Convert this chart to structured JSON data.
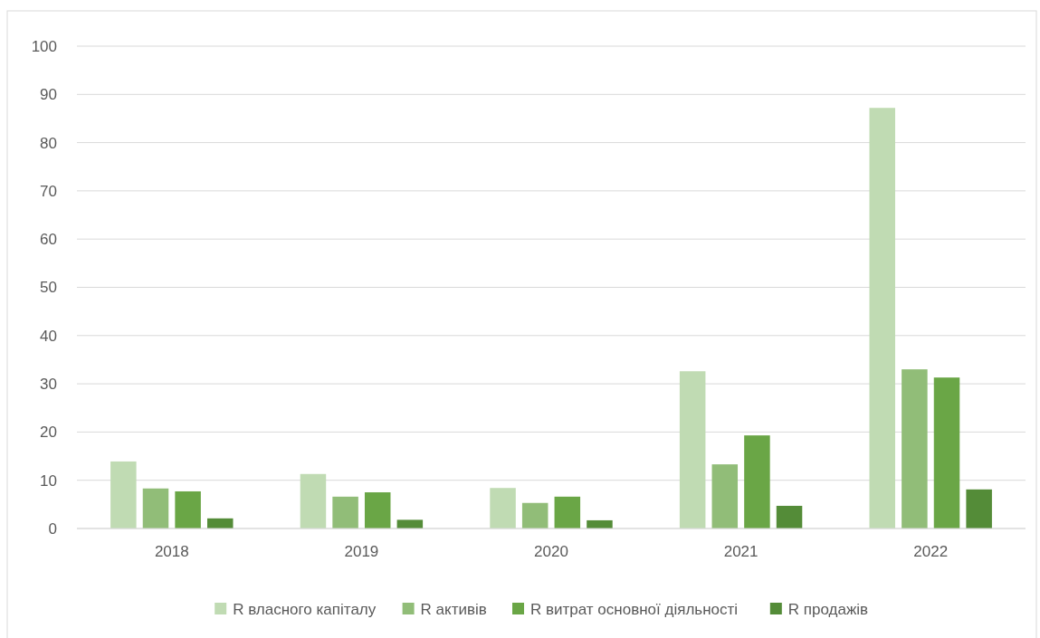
{
  "chart_data": {
    "type": "bar",
    "categories": [
      "2018",
      "2019",
      "2020",
      "2021",
      "2022"
    ],
    "series": [
      {
        "name": "R власного капіталу",
        "color": "#c0dbb3",
        "values": [
          13.9,
          11.3,
          8.4,
          32.6,
          87.2
        ]
      },
      {
        "name": "R активів",
        "color": "#91bd78",
        "values": [
          8.3,
          6.6,
          5.3,
          13.3,
          33.0
        ]
      },
      {
        "name": "R витрат основної діяльності",
        "color": "#6aa646",
        "values": [
          7.7,
          7.5,
          6.6,
          19.3,
          31.3
        ]
      },
      {
        "name": "R продажів",
        "color": "#548c38",
        "values": [
          2.1,
          1.8,
          1.7,
          4.7,
          8.1
        ]
      }
    ],
    "ylim": [
      0,
      100
    ],
    "yticks": [
      0,
      10,
      20,
      30,
      40,
      50,
      60,
      70,
      80,
      90,
      100
    ],
    "grid": "y",
    "legend": "bottom"
  }
}
